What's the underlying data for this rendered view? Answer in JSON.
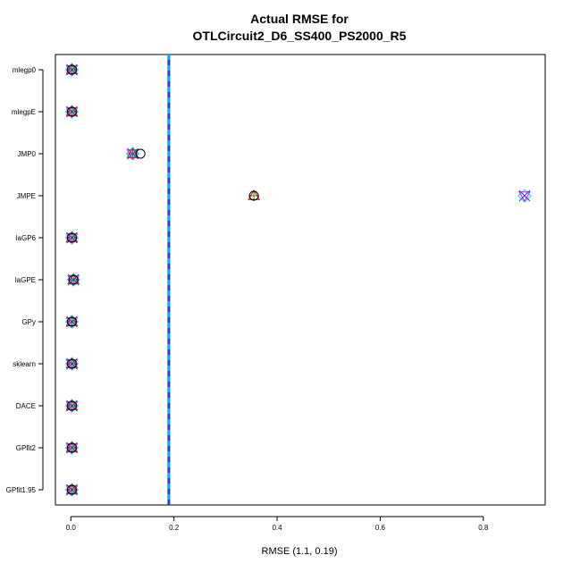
{
  "chart_data": {
    "type": "scatter",
    "title": [
      "Actual RMSE for",
      "OTLCircuit2_D6_SS400_PS2000_R5"
    ],
    "xlabel": "RMSE (1.1, 0.19)",
    "ylabel": "",
    "xlim": [
      -0.03,
      0.92
    ],
    "x_ticks": [
      0.0,
      0.2,
      0.4,
      0.6,
      0.8
    ],
    "x_tick_labels": [
      "0.0",
      "0.2",
      "0.4",
      "0.6",
      "0.8"
    ],
    "categories": [
      "mlegp0",
      "mlegpE",
      "JMP0",
      "JMPE",
      "laGP6",
      "laGPE",
      "GPy",
      "sklearn",
      "DACE",
      "GPfit2",
      "GPfit1.95"
    ],
    "reference_line": {
      "x": 0.19,
      "colors": [
        "#1f3fd6",
        "#00aaff"
      ],
      "style": "dashed"
    },
    "series": [
      {
        "marker": "circle",
        "color": "#000000",
        "values": [
          0.002,
          0.002,
          0.135,
          0.355,
          0.002,
          0.005,
          0.002,
          0.002,
          0.002,
          0.002,
          0.002
        ]
      },
      {
        "marker": "triangle",
        "color": "#dd0000",
        "values": [
          0.002,
          0.002,
          0.12,
          0.355,
          0.002,
          0.005,
          0.002,
          0.002,
          0.002,
          0.002,
          0.002
        ]
      },
      {
        "marker": "plus",
        "color": "#00aa00",
        "values": [
          0.002,
          0.002,
          0.12,
          0.355,
          0.002,
          0.005,
          0.002,
          0.002,
          0.002,
          0.002,
          0.002
        ]
      },
      {
        "marker": "x",
        "color": "#1f3fd6",
        "values": [
          0.002,
          0.002,
          0.12,
          0.88,
          0.002,
          0.005,
          0.002,
          0.002,
          0.002,
          0.002,
          0.002
        ]
      },
      {
        "marker": "diamond",
        "color": "#00e5ee",
        "values": [
          0.002,
          0.002,
          0.12,
          0.88,
          0.002,
          0.005,
          0.002,
          0.002,
          0.002,
          0.002,
          0.002
        ]
      },
      {
        "marker": "down-triangle",
        "color": "#ff00ff",
        "values": [
          0.002,
          0.002,
          0.12,
          0.88,
          0.002,
          0.005,
          0.002,
          0.002,
          0.002,
          0.002,
          0.002
        ]
      }
    ],
    "grid": false,
    "legend": "none"
  }
}
